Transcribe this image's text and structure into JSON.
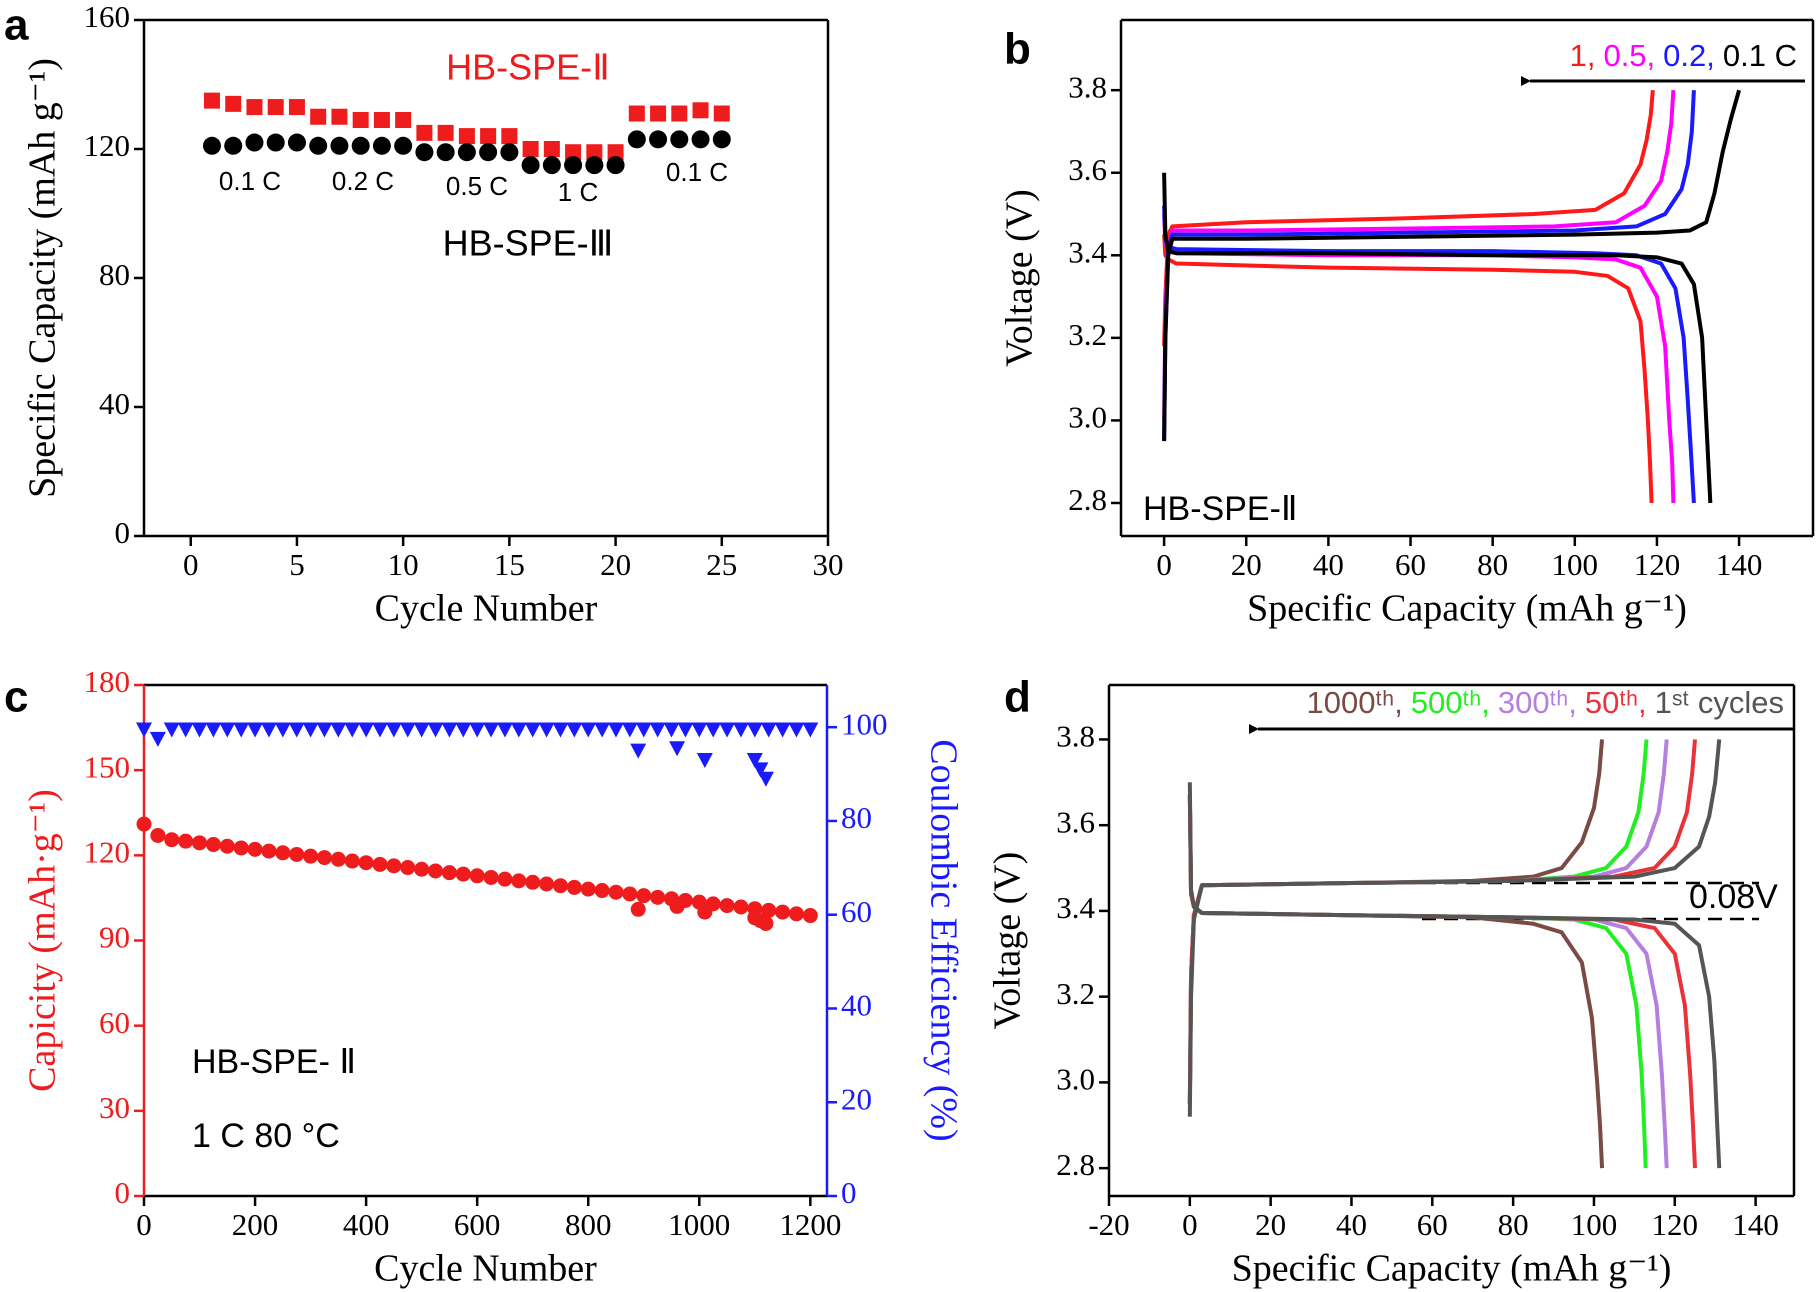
{
  "chart_data": [
    {
      "type": "scatter",
      "label": "a",
      "xlabel": "Cycle Number",
      "ylabel": "Specific Capacity (mAh g⁻¹)",
      "xlim": [
        -2.2,
        30
      ],
      "xticks": [
        0,
        5,
        10,
        15,
        20,
        25,
        30
      ],
      "ylim": [
        0,
        160
      ],
      "yticks": [
        0,
        40,
        80,
        120,
        160
      ],
      "x": [
        1,
        2,
        3,
        4,
        5,
        6,
        7,
        8,
        9,
        10,
        11,
        12,
        13,
        14,
        15,
        16,
        17,
        18,
        19,
        20,
        21,
        22,
        23,
        24,
        25
      ],
      "series": [
        {
          "name": "HB-SPE-Ⅱ",
          "color": "#ee1c1c",
          "marker": "square",
          "values": [
            135,
            134,
            133,
            133,
            133,
            130,
            130,
            129,
            129,
            129,
            125,
            125,
            124,
            124,
            124,
            120,
            120,
            119,
            119,
            119,
            131,
            131,
            131,
            132,
            131
          ]
        },
        {
          "name": "HB-SPE-Ⅲ",
          "color": "#000000",
          "marker": "circle",
          "values": [
            121,
            121,
            122,
            122,
            122,
            121,
            121,
            121,
            121,
            121,
            119,
            119,
            119,
            119,
            119,
            115,
            115,
            115,
            115,
            115,
            123,
            123,
            123,
            123,
            123
          ]
        }
      ],
      "annotations": [
        "0.1 C",
        "0.2 C",
        "0.5 C",
        "1 C",
        "0.1 C"
      ]
    },
    {
      "type": "line",
      "label": "b",
      "xlabel": "Specific Capacity (mAh g⁻¹)",
      "ylabel": "Voltage (V)",
      "xlim": [
        -10.5,
        158
      ],
      "xticks": [
        0,
        20,
        40,
        60,
        80,
        100,
        120,
        140
      ],
      "ylim": [
        2.72,
        3.97
      ],
      "yticks": [
        2.8,
        {
          "value": 3,
          "label": "3.0"
        },
        3.2,
        3.4,
        3.6,
        3.8
      ],
      "series": [
        {
          "name": "1,",
          "color": "#ff1a1a",
          "x": [
            0,
            0.3,
            1,
            2,
            20,
            60,
            90,
            105,
            112,
            116,
            117.5,
            118.5,
            119,
            null,
            0,
            0.3,
            1,
            3,
            40,
            80,
            100,
            108,
            113,
            116,
            117,
            117.8,
            118.3,
            118.7
          ],
          "values": [
            3.18,
            3.3,
            3.45,
            3.47,
            3.48,
            3.49,
            3.5,
            3.51,
            3.55,
            3.62,
            3.68,
            3.74,
            3.8,
            null,
            3.45,
            3.4,
            3.39,
            3.38,
            3.37,
            3.365,
            3.36,
            3.35,
            3.32,
            3.24,
            3.12,
            3.0,
            2.9,
            2.8
          ]
        },
        {
          "name": "0.5,",
          "color": "#ff00ff",
          "x": [
            0,
            0.3,
            1,
            2,
            20,
            60,
            95,
            110,
            117,
            121,
            122.5,
            123.5,
            124,
            null,
            0,
            0.3,
            1,
            3,
            40,
            80,
            100,
            110,
            116,
            120,
            122,
            123,
            123.7,
            124
          ],
          "values": [
            3.0,
            3.25,
            3.42,
            3.46,
            3.46,
            3.465,
            3.47,
            3.48,
            3.52,
            3.58,
            3.65,
            3.72,
            3.8,
            null,
            3.5,
            3.43,
            3.41,
            3.405,
            3.4,
            3.4,
            3.395,
            3.39,
            3.37,
            3.3,
            3.18,
            3.0,
            2.9,
            2.8
          ]
        },
        {
          "name": "0.2,",
          "color": "#1a1aff",
          "x": [
            0,
            0.3,
            1,
            2,
            20,
            60,
            100,
            115,
            122,
            126,
            127.5,
            128.5,
            129,
            null,
            0,
            0.3,
            1,
            3,
            40,
            80,
            105,
            115,
            121,
            124.5,
            126.5,
            127.5,
            128.3,
            129
          ],
          "values": [
            2.95,
            3.2,
            3.41,
            3.45,
            3.45,
            3.455,
            3.46,
            3.47,
            3.5,
            3.56,
            3.62,
            3.7,
            3.8,
            null,
            3.52,
            3.44,
            3.42,
            3.415,
            3.41,
            3.41,
            3.405,
            3.4,
            3.38,
            3.32,
            3.2,
            3.05,
            2.92,
            2.8
          ]
        },
        {
          "name": "0.1 C",
          "color": "#000000",
          "x": [
            0,
            0.3,
            1,
            2,
            20,
            60,
            100,
            120,
            128,
            132,
            134,
            136,
            138,
            140,
            null,
            0,
            0.3,
            1,
            3,
            40,
            80,
            110,
            120,
            126,
            129,
            131,
            132,
            132.5,
            133
          ],
          "values": [
            2.95,
            3.2,
            3.4,
            3.44,
            3.44,
            3.445,
            3.45,
            3.455,
            3.46,
            3.48,
            3.55,
            3.65,
            3.73,
            3.8,
            null,
            3.6,
            3.45,
            3.41,
            3.405,
            3.405,
            3.4,
            3.4,
            3.395,
            3.38,
            3.33,
            3.2,
            3.0,
            2.9,
            2.8
          ]
        }
      ],
      "annotations": [
        "HB-SPE-Ⅱ"
      ]
    },
    {
      "type": "scatter",
      "label": "c",
      "xlabel": "Cycle Number",
      "ylabel": "Capicity (mAh·g⁻¹)",
      "y2label": "Coulombic Efficiency (%)",
      "xlim": [
        0,
        1230
      ],
      "xticks": [
        0,
        200,
        400,
        600,
        800,
        1000,
        1200
      ],
      "ylim": [
        0,
        180
      ],
      "yticks": [
        0,
        30,
        60,
        90,
        120,
        150,
        180
      ],
      "y2lim": [
        0,
        109
      ],
      "y2ticks": [
        0,
        20,
        40,
        60,
        80,
        100
      ],
      "x": [
        0,
        25,
        50,
        75,
        100,
        125,
        150,
        175,
        200,
        225,
        250,
        275,
        300,
        325,
        350,
        375,
        400,
        425,
        450,
        475,
        500,
        525,
        550,
        575,
        600,
        625,
        650,
        675,
        700,
        725,
        750,
        775,
        800,
        825,
        850,
        875,
        900,
        925,
        950,
        975,
        1000,
        1025,
        1050,
        1075,
        1100,
        1125,
        1150,
        1175,
        1200,
        890,
        960,
        1010,
        1100,
        1110,
        1120
      ],
      "series": [
        {
          "color": "#ee1c1c",
          "marker": "circle",
          "values": [
            131,
            127,
            125.5,
            125,
            124.4,
            123.8,
            123.2,
            122.6,
            122.1,
            121.5,
            120.9,
            120.3,
            119.7,
            119.2,
            118.6,
            118,
            117.4,
            116.8,
            116.3,
            115.7,
            115.1,
            114.5,
            113.9,
            113.4,
            112.8,
            112.2,
            111.6,
            111,
            110.5,
            109.9,
            109.3,
            108.7,
            108.1,
            107.6,
            107,
            106.4,
            105.8,
            105.2,
            104.7,
            104.1,
            103.5,
            102.9,
            102.3,
            101.8,
            101.2,
            100.6,
            100,
            99.4,
            98.8,
            101,
            102,
            100,
            98,
            97,
            96
          ]
        },
        {
          "color": "#1a1aff",
          "marker": "triangle",
          "axis": "y2",
          "values": [
            99.5,
            97.5,
            99.5,
            99.5,
            99.5,
            99.5,
            99.5,
            99.5,
            99.5,
            99.5,
            99.5,
            99.5,
            99.5,
            99.5,
            99.5,
            99.5,
            99.5,
            99.5,
            99.5,
            99.5,
            99.5,
            99.5,
            99.5,
            99.5,
            99.5,
            99.5,
            99.5,
            99.5,
            99.5,
            99.5,
            99.5,
            99.5,
            99.5,
            99.5,
            99.5,
            99.5,
            99.5,
            99.5,
            99.5,
            99.5,
            99.5,
            99.5,
            99.5,
            99.5,
            99.5,
            99.5,
            99.5,
            99.5,
            99.5,
            95,
            95.5,
            93,
            93,
            91,
            89
          ]
        }
      ],
      "annotations": [
        "HB-SPE- Ⅱ",
        "1 C   80 °C"
      ]
    },
    {
      "type": "line",
      "label": "d",
      "xlabel": "Specific Capacity (mAh g⁻¹)",
      "ylabel": "Voltage (V)",
      "xlim": [
        -20,
        149.5
      ],
      "xticks": [
        -20,
        0,
        20,
        40,
        60,
        80,
        100,
        120,
        140
      ],
      "ylim": [
        2.735,
        3.927
      ],
      "yticks": [
        2.8,
        {
          "value": 3,
          "label": "3.0"
        },
        3.2,
        3.4,
        3.6,
        3.8
      ],
      "series": [
        {
          "name": "1000ᵗʰ,",
          "color": "#7a4a45",
          "x": [
            0,
            0.3,
            1,
            3,
            40,
            70,
            85,
            92,
            97,
            100,
            101.3,
            102,
            null,
            0,
            0.3,
            1,
            3,
            40,
            70,
            85,
            92,
            97,
            99.5,
            100.8,
            101.5,
            102
          ],
          "values": [
            2.95,
            3.25,
            3.39,
            3.46,
            3.465,
            3.47,
            3.48,
            3.5,
            3.56,
            3.64,
            3.72,
            3.8,
            null,
            3.67,
            3.44,
            3.41,
            3.395,
            3.39,
            3.385,
            3.37,
            3.35,
            3.28,
            3.15,
            3.0,
            2.9,
            2.8
          ]
        },
        {
          "name": "500ᵗʰ,",
          "color": "#22ee22",
          "x": [
            0,
            0.3,
            1,
            3,
            40,
            80,
            95,
            103,
            108,
            111,
            112.3,
            113,
            null,
            0,
            0.3,
            1,
            3,
            40,
            80,
            95,
            103,
            108,
            110.5,
            111.8,
            112.4,
            112.8
          ],
          "values": [
            2.95,
            3.25,
            3.39,
            3.46,
            3.465,
            3.47,
            3.48,
            3.5,
            3.55,
            3.63,
            3.72,
            3.8,
            null,
            3.67,
            3.44,
            3.41,
            3.395,
            3.39,
            3.385,
            3.38,
            3.36,
            3.3,
            3.18,
            3.02,
            2.9,
            2.8
          ]
        },
        {
          "name": "300ᵗʰ,",
          "color": "#b57fe0",
          "x": [
            0,
            0.3,
            1,
            3,
            40,
            80,
            100,
            108,
            113,
            116,
            117.3,
            118,
            null,
            0,
            0.3,
            1,
            3,
            40,
            80,
            100,
            108,
            113,
            115.5,
            116.8,
            117.5,
            118
          ],
          "values": [
            2.95,
            3.25,
            3.39,
            3.46,
            3.465,
            3.47,
            3.48,
            3.5,
            3.55,
            3.63,
            3.72,
            3.8,
            null,
            3.67,
            3.44,
            3.41,
            3.395,
            3.39,
            3.385,
            3.38,
            3.36,
            3.3,
            3.18,
            3.02,
            2.9,
            2.8
          ]
        },
        {
          "name": "50ᵗʰ,",
          "color": "#e8333a",
          "x": [
            0,
            0.3,
            1,
            3,
            40,
            80,
            105,
            115,
            120,
            123,
            124.3,
            125,
            null,
            0,
            0.3,
            1,
            3,
            40,
            80,
            105,
            115,
            120,
            122.5,
            123.8,
            124.5,
            125
          ],
          "values": [
            2.95,
            3.25,
            3.39,
            3.46,
            3.465,
            3.47,
            3.48,
            3.5,
            3.55,
            3.63,
            3.72,
            3.8,
            null,
            3.67,
            3.44,
            3.41,
            3.395,
            3.39,
            3.385,
            3.38,
            3.36,
            3.3,
            3.18,
            3.02,
            2.9,
            2.8
          ]
        },
        {
          "name": "1ˢᵗ cycles",
          "color": "#555555",
          "x": [
            0,
            0.3,
            1,
            3,
            40,
            80,
            110,
            120,
            126,
            128.5,
            130,
            131,
            null,
            0,
            0.3,
            1,
            3,
            40,
            80,
            110,
            120,
            126,
            128.5,
            129.8,
            130.5,
            131
          ],
          "values": [
            2.92,
            3.2,
            3.38,
            3.46,
            3.465,
            3.47,
            3.48,
            3.5,
            3.55,
            3.62,
            3.7,
            3.8,
            null,
            3.7,
            3.45,
            3.41,
            3.395,
            3.39,
            3.385,
            3.38,
            3.37,
            3.32,
            3.2,
            3.05,
            2.9,
            2.8
          ]
        }
      ],
      "annotations": [
        "0.08V"
      ]
    }
  ]
}
